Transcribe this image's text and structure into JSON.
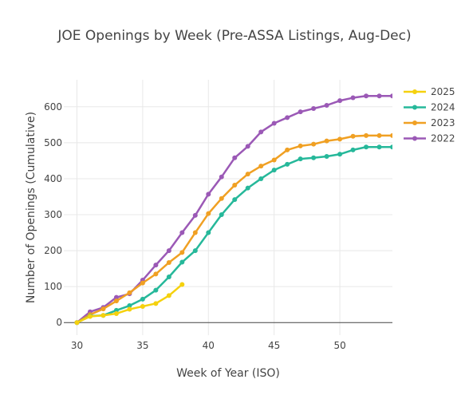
{
  "chart_data": {
    "type": "line",
    "title": "JOE Openings by Week (Pre-ASSA Listings, Aug-Dec)",
    "xlabel": "Week of Year (ISO)",
    "ylabel": "Number of Openings (Cumulative)",
    "xlim": [
      29,
      54
    ],
    "ylim": [
      -35,
      675
    ],
    "x_ticks": [
      30,
      35,
      40,
      45,
      50
    ],
    "y_ticks": [
      0,
      100,
      200,
      300,
      400,
      500,
      600
    ],
    "grid": true,
    "legend_position": "top-right",
    "series": [
      {
        "name": "2025",
        "color": "#f5d10e",
        "points": [
          [
            30,
            0
          ],
          [
            31,
            17
          ],
          [
            32,
            20
          ],
          [
            33,
            25
          ],
          [
            34,
            37
          ],
          [
            35,
            45
          ],
          [
            36,
            53
          ],
          [
            37,
            75
          ],
          [
            38,
            106
          ]
        ]
      },
      {
        "name": "2024",
        "color": "#26b89a",
        "points": [
          [
            30,
            0
          ],
          [
            31,
            18
          ],
          [
            32,
            20
          ],
          [
            33,
            34
          ],
          [
            34,
            47
          ],
          [
            35,
            65
          ],
          [
            36,
            90
          ],
          [
            37,
            127
          ],
          [
            38,
            168
          ],
          [
            39,
            200
          ],
          [
            40,
            250
          ],
          [
            41,
            300
          ],
          [
            42,
            342
          ],
          [
            43,
            374
          ],
          [
            44,
            400
          ],
          [
            45,
            424
          ],
          [
            46,
            440
          ],
          [
            47,
            455
          ],
          [
            48,
            458
          ],
          [
            49,
            462
          ],
          [
            50,
            468
          ],
          [
            51,
            480
          ],
          [
            52,
            488
          ],
          [
            53,
            488
          ],
          [
            54,
            488
          ]
        ]
      },
      {
        "name": "2023",
        "color": "#f0a023",
        "points": [
          [
            30,
            0
          ],
          [
            31,
            22
          ],
          [
            32,
            38
          ],
          [
            33,
            60
          ],
          [
            34,
            83
          ],
          [
            35,
            110
          ],
          [
            36,
            135
          ],
          [
            37,
            167
          ],
          [
            38,
            195
          ],
          [
            39,
            250
          ],
          [
            40,
            303
          ],
          [
            41,
            345
          ],
          [
            42,
            382
          ],
          [
            43,
            413
          ],
          [
            44,
            435
          ],
          [
            45,
            452
          ],
          [
            46,
            480
          ],
          [
            47,
            491
          ],
          [
            48,
            496
          ],
          [
            49,
            505
          ],
          [
            50,
            510
          ],
          [
            51,
            518
          ],
          [
            52,
            520
          ],
          [
            53,
            520
          ],
          [
            54,
            520
          ]
        ]
      },
      {
        "name": "2022",
        "color": "#9b59b6",
        "points": [
          [
            30,
            0
          ],
          [
            31,
            30
          ],
          [
            32,
            42
          ],
          [
            33,
            70
          ],
          [
            34,
            80
          ],
          [
            35,
            118
          ],
          [
            36,
            160
          ],
          [
            37,
            200
          ],
          [
            38,
            250
          ],
          [
            39,
            298
          ],
          [
            40,
            357
          ],
          [
            41,
            405
          ],
          [
            42,
            458
          ],
          [
            43,
            490
          ],
          [
            44,
            530
          ],
          [
            45,
            554
          ],
          [
            46,
            570
          ],
          [
            47,
            586
          ],
          [
            48,
            595
          ],
          [
            49,
            604
          ],
          [
            50,
            617
          ],
          [
            51,
            625
          ],
          [
            52,
            630
          ],
          [
            53,
            630
          ],
          [
            54,
            630
          ]
        ]
      }
    ]
  }
}
